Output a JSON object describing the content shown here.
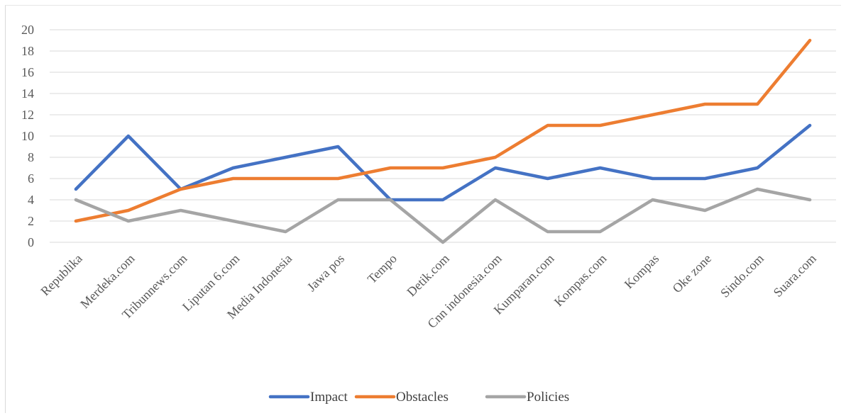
{
  "chart_data": {
    "type": "line",
    "title": "",
    "xlabel": "",
    "ylabel": "",
    "ylim": [
      0,
      20
    ],
    "y_ticks": [
      "0",
      "2",
      "4",
      "6",
      "8",
      "10",
      "12",
      "14",
      "16",
      "18",
      "20"
    ],
    "grid": true,
    "legend_position": "bottom",
    "categories": [
      "Republika",
      "Merdeka.com",
      "Tribunnews.com",
      "Liputan 6.com",
      "Media Indonesia",
      "Jawa pos",
      "Tempo",
      "Detik.com",
      "Cnn indonesia.com",
      "Kumparan.com",
      "Kompas.com",
      "Kompas",
      "Oke zone",
      "Sindo.com",
      "Suara.com"
    ],
    "series": [
      {
        "name": "Impact",
        "color": "#4472c4",
        "values": [
          5,
          10,
          5,
          7,
          8,
          9,
          4,
          4,
          7,
          6,
          7,
          6,
          6,
          7,
          11
        ]
      },
      {
        "name": "Obstacles",
        "color": "#ed7d31",
        "values": [
          2,
          3,
          5,
          6,
          6,
          6,
          7,
          7,
          8,
          11,
          11,
          12,
          13,
          13,
          19
        ]
      },
      {
        "name": "Policies",
        "color": "#a5a5a5",
        "values": [
          4,
          2,
          3,
          2,
          1,
          4,
          4,
          0,
          4,
          1,
          1,
          4,
          3,
          5,
          4
        ]
      }
    ]
  }
}
